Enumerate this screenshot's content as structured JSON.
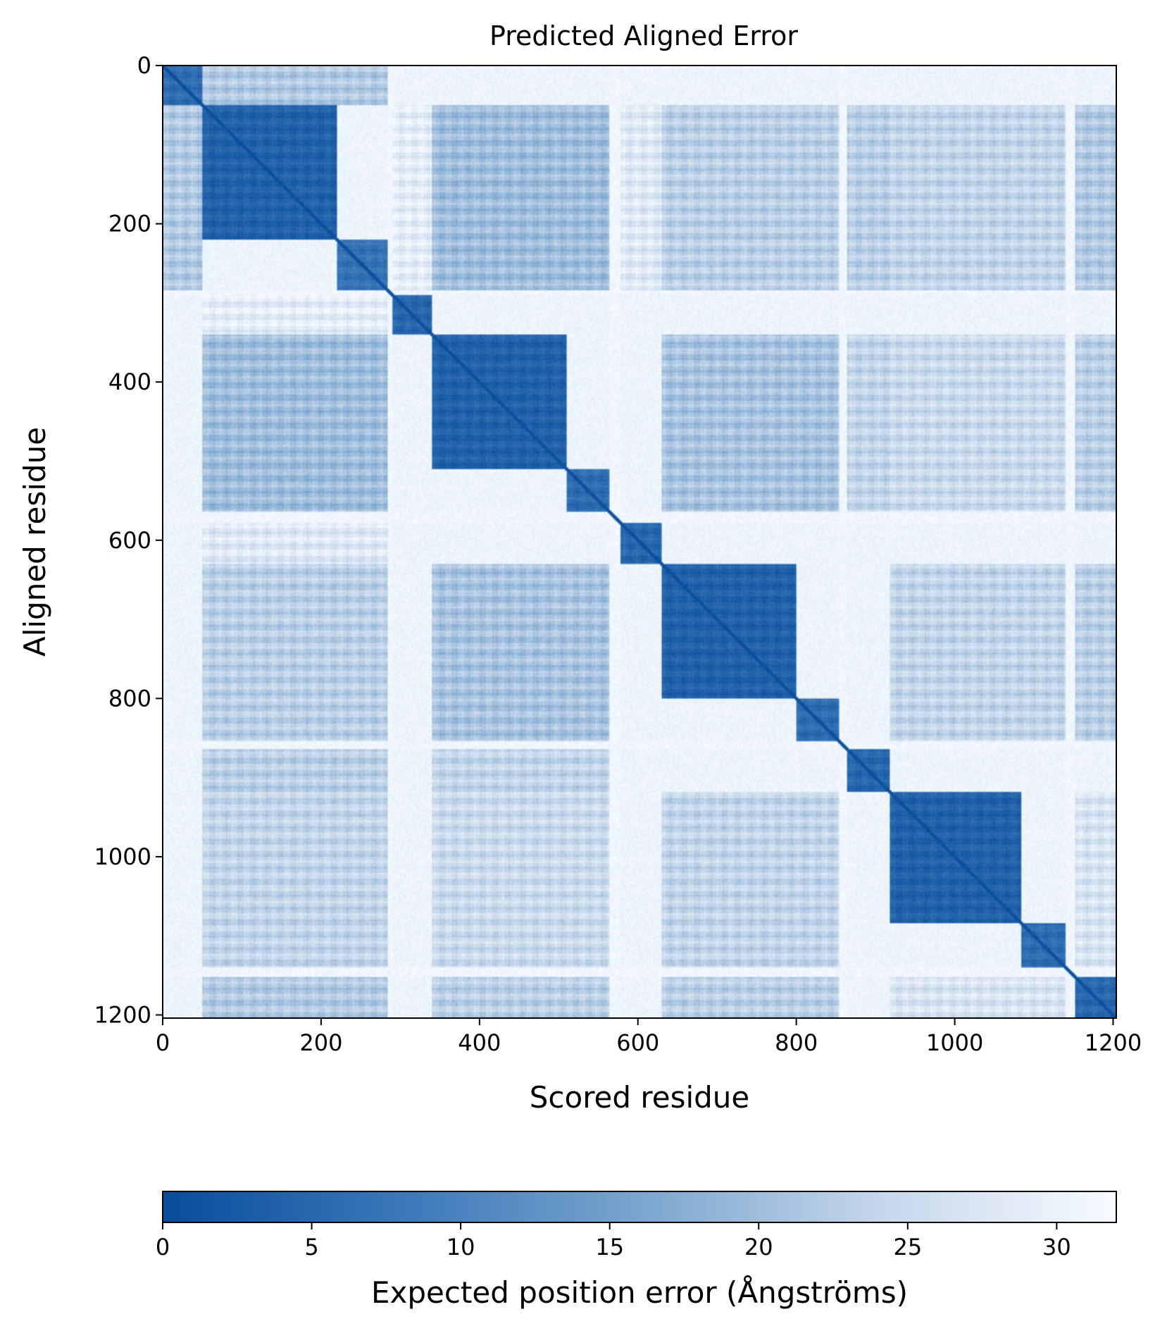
{
  "chart_data": {
    "type": "heatmap",
    "title": "Predicted Aligned Error",
    "xlabel": "Scored residue",
    "ylabel": "Aligned residue",
    "n_residues": 1204,
    "xlim": [
      0,
      1204
    ],
    "ylim": [
      1204,
      0
    ],
    "x_ticks": [
      0,
      200,
      400,
      600,
      800,
      1000,
      1200
    ],
    "y_ticks": [
      0,
      200,
      400,
      600,
      800,
      1000,
      1200
    ],
    "grid": false,
    "colorbar": {
      "label": "Expected position error (Ångströms)",
      "range": [
        0,
        32
      ],
      "ticks": [
        0,
        5,
        10,
        15,
        20,
        25,
        30
      ],
      "orientation": "horizontal",
      "placement": "bottom",
      "colormap": "Blues_r",
      "low_color": "#084c9c",
      "high_color": "#f7fbff"
    },
    "domains": [
      {
        "start": 0,
        "end": 50,
        "mean_error": 6
      },
      {
        "start": 50,
        "end": 220,
        "mean_error": 4
      },
      {
        "start": 220,
        "end": 285,
        "mean_error": 7
      },
      {
        "start": 285,
        "end": 290,
        "mean_error": 31
      },
      {
        "start": 290,
        "end": 340,
        "mean_error": 5
      },
      {
        "start": 340,
        "end": 510,
        "mean_error": 4
      },
      {
        "start": 510,
        "end": 565,
        "mean_error": 6
      },
      {
        "start": 565,
        "end": 578,
        "mean_error": 31
      },
      {
        "start": 578,
        "end": 630,
        "mean_error": 5
      },
      {
        "start": 630,
        "end": 800,
        "mean_error": 4
      },
      {
        "start": 800,
        "end": 855,
        "mean_error": 6
      },
      {
        "start": 855,
        "end": 865,
        "mean_error": 31
      },
      {
        "start": 865,
        "end": 918,
        "mean_error": 5
      },
      {
        "start": 918,
        "end": 1085,
        "mean_error": 4
      },
      {
        "start": 1085,
        "end": 1140,
        "mean_error": 6
      },
      {
        "start": 1140,
        "end": 1152,
        "mean_error": 31
      },
      {
        "start": 1152,
        "end": 1204,
        "mean_error": 5
      }
    ],
    "inter_domain_errors": [
      {
        "a": [
          50,
          285
        ],
        "b": [
          340,
          565
        ],
        "mean_error": 20
      },
      {
        "a": [
          50,
          285
        ],
        "b": [
          630,
          855
        ],
        "mean_error": 23
      },
      {
        "a": [
          50,
          285
        ],
        "b": [
          918,
          1140
        ],
        "mean_error": 24
      },
      {
        "a": [
          340,
          565
        ],
        "b": [
          630,
          855
        ],
        "mean_error": 21
      },
      {
        "a": [
          340,
          565
        ],
        "b": [
          918,
          1140
        ],
        "mean_error": 25
      },
      {
        "a": [
          630,
          855
        ],
        "b": [
          918,
          1140
        ],
        "mean_error": 24
      },
      {
        "a": [
          0,
          50
        ],
        "b": [
          50,
          285
        ],
        "mean_error": 22
      },
      {
        "a": [
          1152,
          1204
        ],
        "b": [
          50,
          285
        ],
        "mean_error": 22
      },
      {
        "a": [
          1152,
          1204
        ],
        "b": [
          340,
          565
        ],
        "mean_error": 23
      },
      {
        "a": [
          1152,
          1204
        ],
        "b": [
          630,
          855
        ],
        "mean_error": 23
      },
      {
        "a": [
          1152,
          1204
        ],
        "b": [
          918,
          1140
        ],
        "mean_error": 27
      },
      {
        "a": [
          865,
          918
        ],
        "b": [
          50,
          285
        ],
        "mean_error": 23
      },
      {
        "a": [
          865,
          918
        ],
        "b": [
          340,
          565
        ],
        "mean_error": 24
      },
      {
        "a": [
          290,
          340
        ],
        "b": [
          50,
          285
        ],
        "mean_error": 29
      },
      {
        "a": [
          578,
          630
        ],
        "b": [
          50,
          285
        ],
        "mean_error": 28
      }
    ]
  }
}
